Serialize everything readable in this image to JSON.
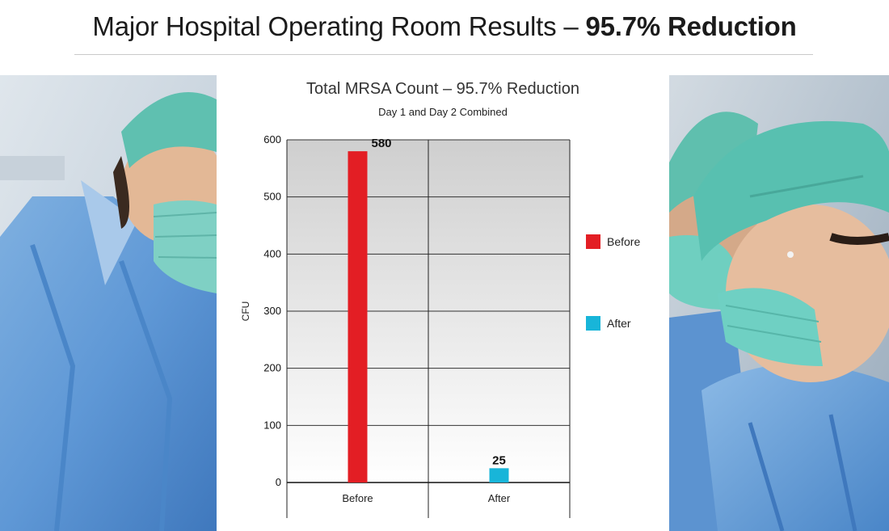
{
  "header": {
    "title_plain": "Major Hospital Operating Room Results – ",
    "title_bold": "95.7% Reduction"
  },
  "chart_data": {
    "type": "bar",
    "title": "Total MRSA Count – 95.7% Reduction",
    "subtitle": "Day 1 and Day 2 Combined",
    "ylabel": "CFU",
    "xlabel": "",
    "categories": [
      "Before",
      "After"
    ],
    "values": [
      580,
      25
    ],
    "data_labels": [
      "580",
      "25"
    ],
    "ylim": [
      0,
      600
    ],
    "yticks": [
      0,
      100,
      200,
      300,
      400,
      500,
      600
    ],
    "colors": [
      "#e31e24",
      "#18b5d9"
    ],
    "grid": true,
    "legend": {
      "placement": "right",
      "entries": [
        {
          "label": "Before",
          "color": "#e31e24"
        },
        {
          "label": "After",
          "color": "#18b5d9"
        }
      ]
    }
  },
  "photos": {
    "left_icon": "surgeon-photo-icon",
    "right_icon": "surgical-team-photo-icon"
  }
}
